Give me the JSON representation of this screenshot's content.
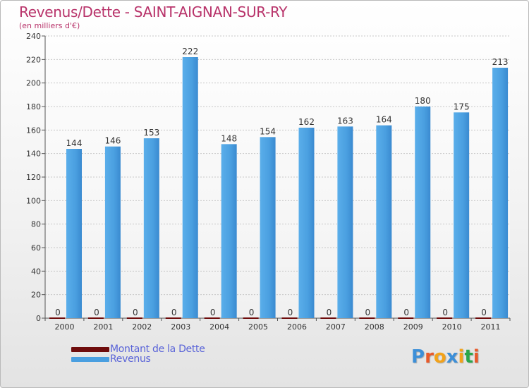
{
  "header": {
    "title": "Revenus/Dette - SAINT-AIGNAN-SUR-RY",
    "subtitle": "(en milliers d'€)"
  },
  "colors": {
    "title": "#b8336a",
    "revenus": "#4a9fe0",
    "dette": "#6e0c0c",
    "legend_text": "#5a64d8"
  },
  "legend": {
    "items": [
      {
        "label": "Montant de la Dette",
        "color": "#6e0c0c"
      },
      {
        "label": "Revenus",
        "color": "#4a9fe0"
      }
    ]
  },
  "logo": {
    "letters": [
      "P",
      "r",
      "o",
      "x",
      "i",
      "t",
      "i"
    ],
    "colors": [
      "#3c8fd8",
      "#e85a2a",
      "#f2a21a",
      "#3c8fd8",
      "#f2a21a",
      "#2aa64a",
      "#e85a2a"
    ]
  },
  "chart_data": {
    "type": "bar",
    "title": "Revenus/Dette - SAINT-AIGNAN-SUR-RY",
    "subtitle": "(en milliers d'€)",
    "categories": [
      "2000",
      "2001",
      "2002",
      "2003",
      "2004",
      "2005",
      "2006",
      "2007",
      "2008",
      "2009",
      "2010",
      "2011"
    ],
    "series": [
      {
        "name": "Montant de la Dette",
        "values": [
          0,
          0,
          0,
          0,
          0,
          0,
          0,
          0,
          0,
          0,
          0,
          0
        ]
      },
      {
        "name": "Revenus",
        "values": [
          144,
          146,
          153,
          222,
          148,
          154,
          162,
          163,
          164,
          180,
          175,
          213
        ]
      }
    ],
    "yticks": [
      "0",
      "20",
      "40",
      "60",
      "80",
      "100",
      "120",
      "140",
      "160",
      "180",
      "200",
      "220",
      "240"
    ],
    "ylim": [
      0,
      240
    ],
    "grid": true,
    "legend_position": "bottom-left"
  }
}
